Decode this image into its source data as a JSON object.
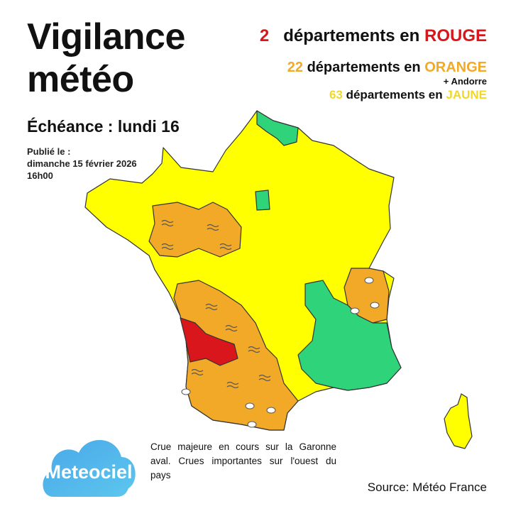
{
  "title": {
    "line1": "Vigilance",
    "line2": "météo"
  },
  "echeance": "Échéance :  lundi 16",
  "publication": {
    "label": "Publié le :",
    "date": "dimanche 15 février 2026",
    "time": "16h00"
  },
  "stats": {
    "rouge": {
      "count": "2",
      "text": "départements en",
      "level": "ROUGE"
    },
    "orange": {
      "count": "22",
      "text": "départements en",
      "level": "ORANGE",
      "extra": "+ Andorre"
    },
    "jaune": {
      "count": "63",
      "text": "départements en",
      "level": "JAUNE"
    }
  },
  "colors": {
    "rouge": "#d8161b",
    "orange": "#f2a928",
    "jaune": "#ffff00",
    "vert": "#2fd47a"
  },
  "map_legend_icons": [
    "flood-wave-icon",
    "rain-flood-icon"
  ],
  "note": "Crue majeure en cours sur la Garonne aval. Crues importantes sur l'ouest du pays",
  "logo": "Meteociel",
  "source": "Source: Météo France"
}
